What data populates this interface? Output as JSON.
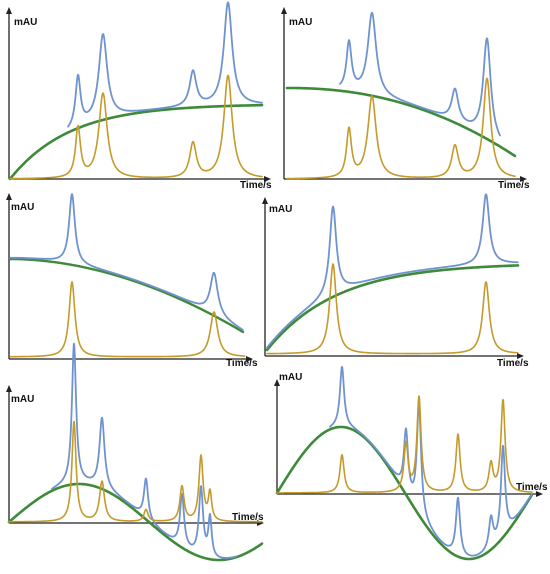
{
  "labels": {
    "y_axis": "mAU",
    "x_axis": "Time/s"
  },
  "colors": {
    "combined_signal": "#6f93cf",
    "peaks": "#c49a2b",
    "baseline_drift": "#3f8a3a"
  },
  "panels": [
    {
      "id": "panel-1-rising-drift"
    },
    {
      "id": "panel-2-falling-drift"
    },
    {
      "id": "panel-3-falling-drift"
    },
    {
      "id": "panel-4-rising-drift"
    },
    {
      "id": "panel-5-sine-drift"
    },
    {
      "id": "panel-6-sine-drift"
    }
  ]
}
